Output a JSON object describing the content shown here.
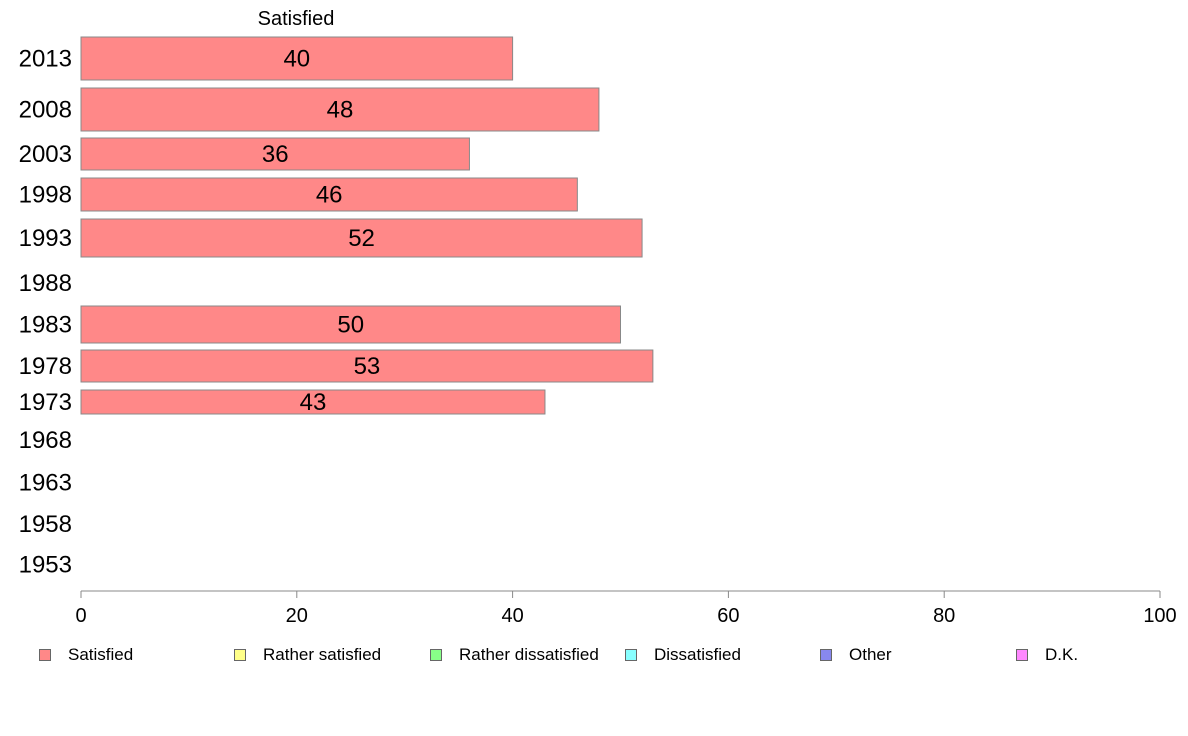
{
  "chart_data": {
    "type": "bar",
    "orientation": "horizontal",
    "title": "Satisfied",
    "xlabel": "",
    "ylabel": "",
    "xlim": [
      0,
      100
    ],
    "x_ticks": [
      "0",
      "20",
      "40",
      "60",
      "80",
      "100"
    ],
    "grid": false,
    "categories": [
      "2013",
      "2008",
      "2003",
      "1998",
      "1993",
      "1988",
      "1983",
      "1978",
      "1973",
      "1968",
      "1963",
      "1958",
      "1953"
    ],
    "series": [
      {
        "name": "Satisfied",
        "color": "#ff8888",
        "values": [
          40,
          48,
          36,
          46,
          52,
          null,
          50,
          53,
          43,
          null,
          null,
          null,
          null
        ]
      }
    ],
    "data_labels": [
      "40",
      "48",
      "36",
      "46",
      "52",
      "",
      "50",
      "53",
      "43",
      "",
      "",
      "",
      ""
    ],
    "legend_position": "bottom",
    "legend": [
      {
        "label": "Satisfied",
        "color": "#ff8888"
      },
      {
        "label": "Rather satisfied",
        "color": "#ffff88"
      },
      {
        "label": "Rather dissatisfied",
        "color": "#88ff88"
      },
      {
        "label": "Dissatisfied",
        "color": "#88ffff"
      },
      {
        "label": "Other",
        "color": "#8888ee"
      },
      {
        "label": "D.K.",
        "color": "#ff88ff"
      }
    ]
  }
}
